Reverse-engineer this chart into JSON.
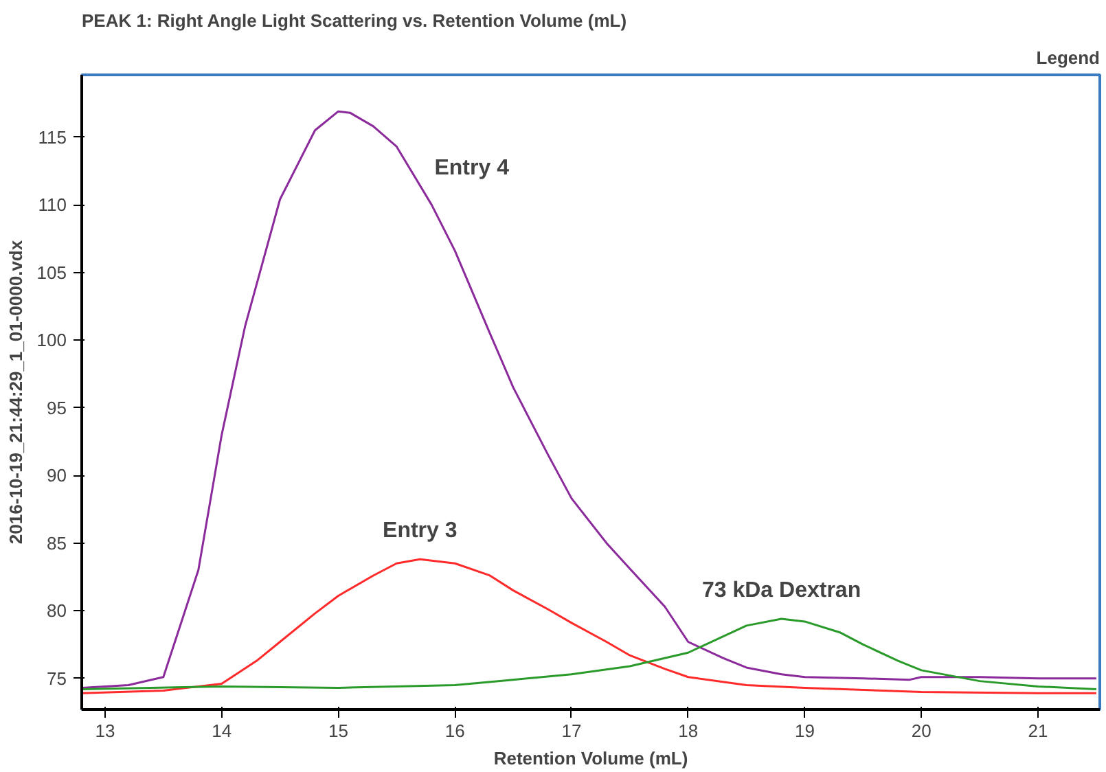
{
  "chart_data": {
    "type": "line",
    "title": "PEAK 1: Right Angle Light Scattering vs. Retention Volume (mL)",
    "xlabel": "Retention Volume (mL)",
    "ylabel": "2016-10-19_21:44:29_1_01-0000.vdx",
    "annotations": [
      "Legend"
    ],
    "xlim": [
      12.8,
      21.53
    ],
    "ylim": [
      72.7,
      119.6
    ],
    "xticks": [
      13,
      14,
      15,
      16,
      17,
      18,
      19,
      20,
      21
    ],
    "yticks": [
      75,
      80,
      85,
      90,
      95,
      100,
      105,
      110,
      115
    ],
    "grid": false,
    "legend": false,
    "marker": "none",
    "line_style": "solid",
    "series": [
      {
        "name": "Entry 4",
        "color": "#8b2a9b",
        "x": [
          12.8,
          13.2,
          13.5,
          13.8,
          14,
          14.2,
          14.5,
          14.8,
          15,
          15.1,
          15.3,
          15.5,
          15.8,
          16,
          16.3,
          16.5,
          16.8,
          17,
          17.3,
          17.5,
          17.8,
          18,
          18.3,
          18.5,
          18.8,
          19,
          19.5,
          19.9,
          20,
          20.5,
          21,
          21.5
        ],
        "values": [
          74.3,
          74.5,
          75.1,
          83,
          93,
          101,
          110.4,
          115.5,
          116.9,
          116.8,
          115.8,
          114.3,
          110,
          106.6,
          100.5,
          96.5,
          91.5,
          88.3,
          85,
          83.1,
          80.3,
          77.7,
          76.5,
          75.8,
          75.3,
          75.1,
          75.0,
          74.9,
          75.1,
          75.1,
          75.0,
          75.0
        ]
      },
      {
        "name": "Entry 3",
        "color": "#ff2a2a",
        "x": [
          12.8,
          13.5,
          14,
          14.3,
          14.5,
          14.8,
          15,
          15.3,
          15.5,
          15.7,
          16,
          16.3,
          16.5,
          16.8,
          17,
          17.3,
          17.5,
          17.8,
          18,
          18.5,
          19,
          20,
          21,
          21.5
        ],
        "values": [
          73.9,
          74.1,
          74.6,
          76.3,
          77.7,
          79.8,
          81.1,
          82.6,
          83.5,
          83.8,
          83.5,
          82.6,
          81.5,
          80.1,
          79.1,
          77.7,
          76.7,
          75.7,
          75.1,
          74.5,
          74.3,
          74.0,
          73.9,
          73.9
        ]
      },
      {
        "name": "73 kDa Dextran",
        "color": "#2a9a2a",
        "x": [
          12.8,
          14,
          15,
          16,
          16.5,
          17,
          17.5,
          18,
          18.3,
          18.5,
          18.8,
          19,
          19.3,
          19.5,
          19.8,
          20,
          20.5,
          21,
          21.5
        ],
        "values": [
          74.2,
          74.4,
          74.3,
          74.5,
          74.9,
          75.3,
          75.9,
          76.9,
          78.1,
          78.9,
          79.4,
          79.2,
          78.4,
          77.5,
          76.3,
          75.6,
          74.8,
          74.4,
          74.2
        ]
      }
    ]
  }
}
